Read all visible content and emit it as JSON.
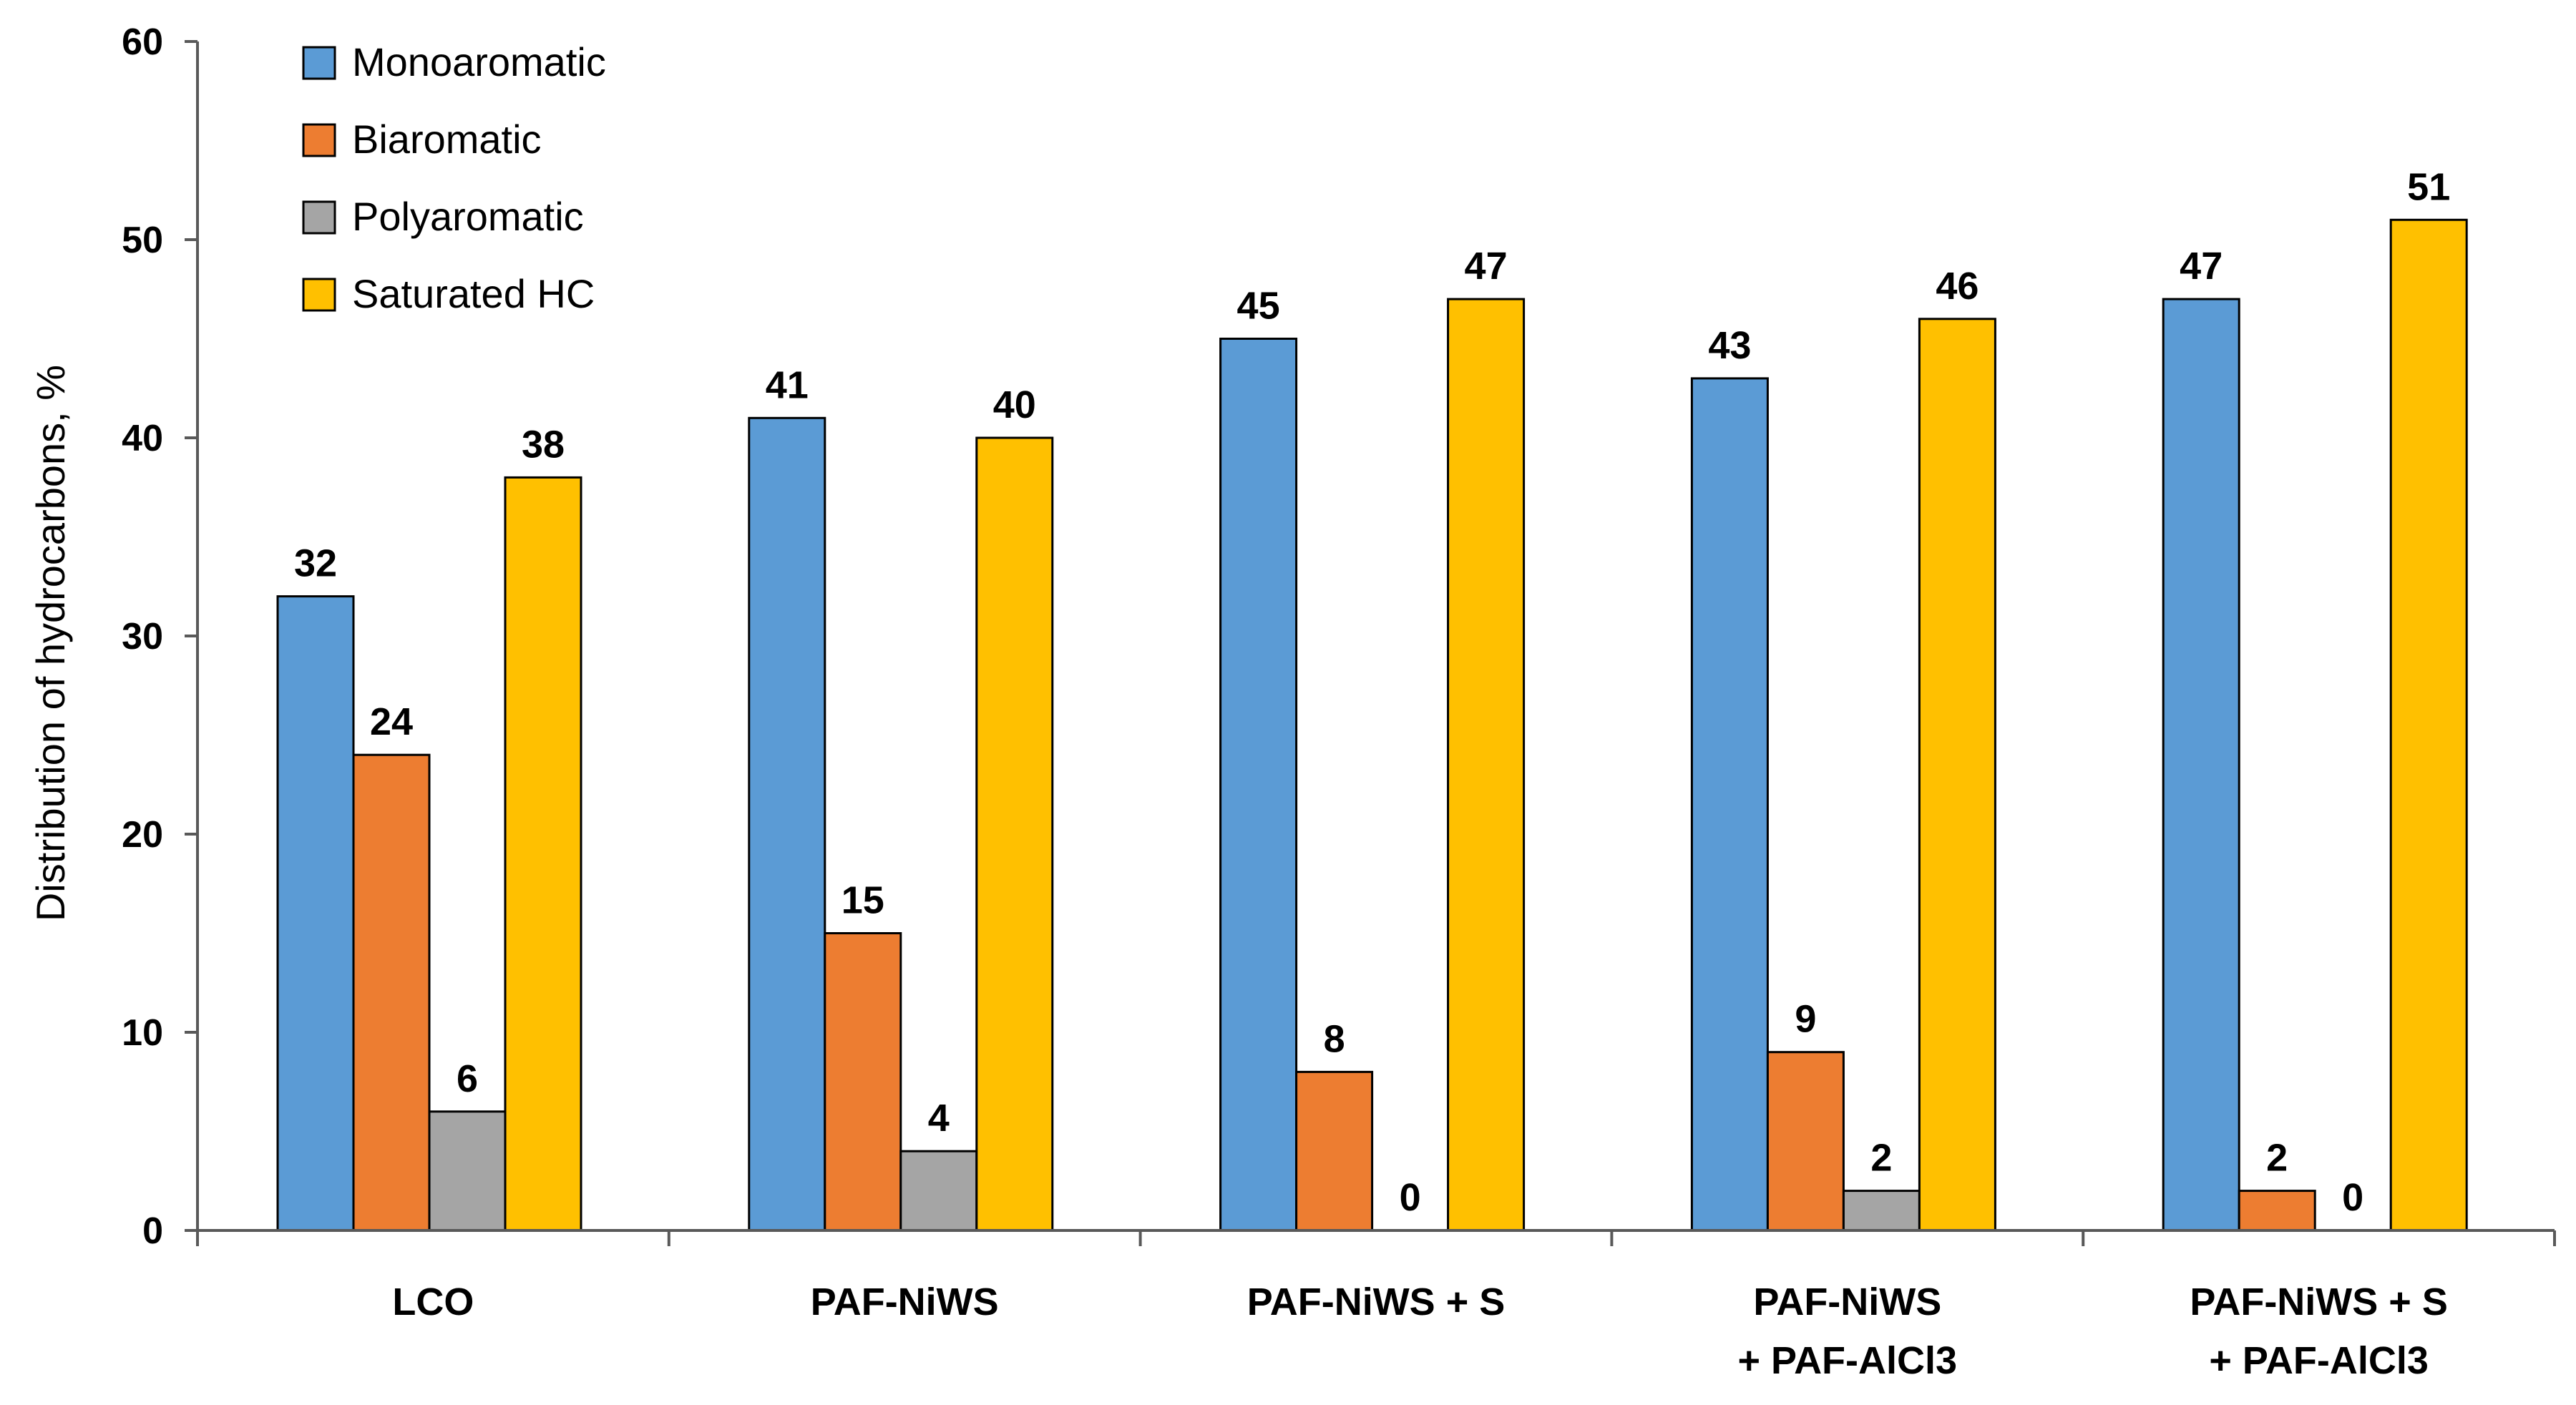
{
  "chart_data": {
    "type": "bar",
    "ylabel": "Distribution of hydrocarbons, %",
    "xlabel": "",
    "ylim": [
      0,
      60
    ],
    "yticks": [
      0,
      10,
      20,
      30,
      40,
      50,
      60
    ],
    "grid": false,
    "legend_position": "top-left",
    "categories": [
      [
        "LCO"
      ],
      [
        "PAF-NiWS"
      ],
      [
        "PAF-NiWS + S"
      ],
      [
        "PAF-NiWS",
        "+ PAF-AlCl3"
      ],
      [
        "PAF-NiWS + S",
        "+ PAF-AlCl3"
      ]
    ],
    "series": [
      {
        "name": "Monoaromatic",
        "color": "#5B9BD5",
        "values": [
          32,
          41,
          45,
          43,
          47
        ]
      },
      {
        "name": "Biaromatic",
        "color": "#ED7D31",
        "values": [
          24,
          15,
          8,
          9,
          2
        ]
      },
      {
        "name": "Polyaromatic",
        "color": "#A5A5A5",
        "values": [
          6,
          4,
          0,
          2,
          0
        ]
      },
      {
        "name": "Saturated HC",
        "color": "#FFC000",
        "values": [
          38,
          40,
          47,
          46,
          51
        ]
      }
    ]
  }
}
